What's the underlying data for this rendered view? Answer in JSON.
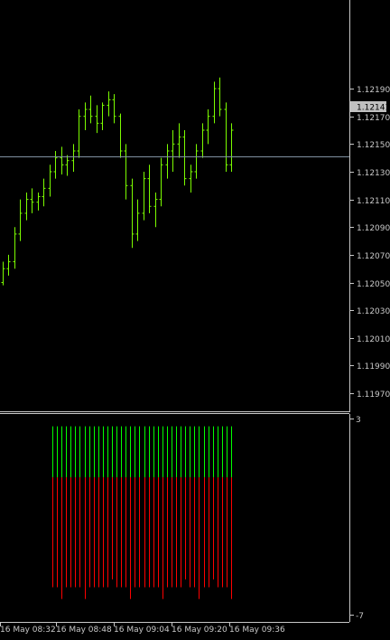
{
  "chart_data": [
    {
      "type": "ohlc",
      "symbol_price_axis": [
        1.1219,
        1.1217,
        1.1215,
        1.1213,
        1.1211,
        1.1209,
        1.1207,
        1.1205,
        1.1203,
        1.1201,
        1.1199,
        1.1197
      ],
      "price_axis_labels": [
        "1.12190",
        "1.12170",
        "1.12150",
        "1.12130",
        "1.12110",
        "1.12090",
        "1.12070",
        "1.12050",
        "1.12030",
        "1.12010",
        "1.11990",
        "1.11970"
      ],
      "ylim": [
        1.11957,
        1.12254
      ],
      "current_price": 1.12141,
      "current_price_label": "1.12141",
      "bars": [
        [
          1.1205,
          1.12065,
          1.12048,
          1.1206
        ],
        [
          1.1206,
          1.1207,
          1.12055,
          1.12065
        ],
        [
          1.12065,
          1.1209,
          1.1206,
          1.12085
        ],
        [
          1.12085,
          1.1211,
          1.1208,
          1.121
        ],
        [
          1.121,
          1.12115,
          1.12095,
          1.1211
        ],
        [
          1.1211,
          1.12118,
          1.121,
          1.12108
        ],
        [
          1.12108,
          1.12115,
          1.12102,
          1.12112
        ],
        [
          1.12112,
          1.12125,
          1.12105,
          1.12118
        ],
        [
          1.12118,
          1.12135,
          1.12112,
          1.1213
        ],
        [
          1.1213,
          1.12145,
          1.12125,
          1.1214
        ],
        [
          1.1214,
          1.12148,
          1.12128,
          1.12135
        ],
        [
          1.12135,
          1.12142,
          1.12127,
          1.12138
        ],
        [
          1.12138,
          1.1215,
          1.1213,
          1.12145
        ],
        [
          1.12145,
          1.12175,
          1.1214,
          1.1217
        ],
        [
          1.1217,
          1.1218,
          1.1216,
          1.12175
        ],
        [
          1.12175,
          1.12185,
          1.12165,
          1.1217
        ],
        [
          1.1217,
          1.12178,
          1.12158,
          1.12165
        ],
        [
          1.12165,
          1.1218,
          1.1216,
          1.12178
        ],
        [
          1.12178,
          1.12188,
          1.1217,
          1.12182
        ],
        [
          1.12182,
          1.12186,
          1.12165,
          1.1217
        ],
        [
          1.1217,
          1.12172,
          1.1214,
          1.12145
        ],
        [
          1.12145,
          1.1215,
          1.1211,
          1.1212
        ],
        [
          1.1212,
          1.12125,
          1.12075,
          1.12085
        ],
        [
          1.12085,
          1.1211,
          1.1208,
          1.121
        ],
        [
          1.121,
          1.1213,
          1.12095,
          1.12125
        ],
        [
          1.12125,
          1.12135,
          1.121,
          1.12105
        ],
        [
          1.12105,
          1.12115,
          1.1209,
          1.1211
        ],
        [
          1.1211,
          1.1214,
          1.12105,
          1.12135
        ],
        [
          1.12135,
          1.1215,
          1.12125,
          1.12145
        ],
        [
          1.12145,
          1.1216,
          1.1213,
          1.1215
        ],
        [
          1.1215,
          1.12165,
          1.1214,
          1.12155
        ],
        [
          1.12155,
          1.1216,
          1.1212,
          1.12125
        ],
        [
          1.12125,
          1.12135,
          1.12115,
          1.1213
        ],
        [
          1.1213,
          1.1215,
          1.12125,
          1.12145
        ],
        [
          1.12145,
          1.12165,
          1.1214,
          1.1216
        ],
        [
          1.1216,
          1.12175,
          1.1215,
          1.1217
        ],
        [
          1.1217,
          1.12195,
          1.12165,
          1.1219
        ],
        [
          1.1219,
          1.12198,
          1.1217,
          1.12175
        ],
        [
          1.12175,
          1.1218,
          1.1213,
          1.12135
        ],
        [
          1.12135,
          1.12165,
          1.1213,
          1.1216
        ]
      ],
      "x_tick_labels": [
        "16 May 08:32",
        "16 May 08:48",
        "16 May 09:04",
        "16 May 09:20",
        "16 May 09:36"
      ]
    },
    {
      "type": "bar",
      "ylim_labels": [
        "3",
        "-7"
      ],
      "ylim": [
        -7,
        3
      ],
      "positive_color": "#00ff00",
      "negative_color": "#ff0000",
      "values": [
        [
          2.6,
          -5.6
        ],
        [
          2.6,
          -5.6
        ],
        [
          2.6,
          -6.2
        ],
        [
          2.6,
          -5.6
        ],
        [
          2.6,
          -5.6
        ],
        [
          2.6,
          -5.6
        ],
        [
          2.6,
          -5.6
        ],
        [
          2.6,
          -6.2
        ],
        [
          2.6,
          -5.6
        ],
        [
          2.6,
          -5.6
        ],
        [
          2.6,
          -5.6
        ],
        [
          2.6,
          -5.6
        ],
        [
          2.6,
          -5.6
        ],
        [
          2.6,
          -5.2
        ],
        [
          2.6,
          -5.6
        ],
        [
          2.6,
          -5.6
        ],
        [
          2.6,
          -5.6
        ],
        [
          2.6,
          -6.2
        ],
        [
          2.6,
          -5.6
        ],
        [
          2.6,
          -5.6
        ],
        [
          2.6,
          -5.6
        ],
        [
          2.6,
          -5.6
        ],
        [
          2.6,
          -5.6
        ],
        [
          2.6,
          -5.6
        ],
        [
          2.6,
          -6.2
        ],
        [
          2.6,
          -5.6
        ],
        [
          2.6,
          -5.6
        ],
        [
          2.6,
          -5.6
        ],
        [
          2.6,
          -5.6
        ],
        [
          2.6,
          -5.2
        ],
        [
          2.6,
          -5.6
        ],
        [
          2.6,
          -5.6
        ],
        [
          2.6,
          -6.2
        ],
        [
          2.6,
          -5.6
        ],
        [
          2.6,
          -5.6
        ],
        [
          2.6,
          -5.2
        ],
        [
          2.6,
          -5.6
        ],
        [
          2.6,
          -5.6
        ],
        [
          2.6,
          -5.6
        ],
        [
          2.6,
          -6.2
        ]
      ]
    }
  ],
  "colors": {
    "background": "#000000",
    "bars": "#7CFC00",
    "axis": "#c8c8c8",
    "price_line": "#8090a0",
    "price_label_bg": "#c0c0c0",
    "price_label_text": "#000000"
  }
}
